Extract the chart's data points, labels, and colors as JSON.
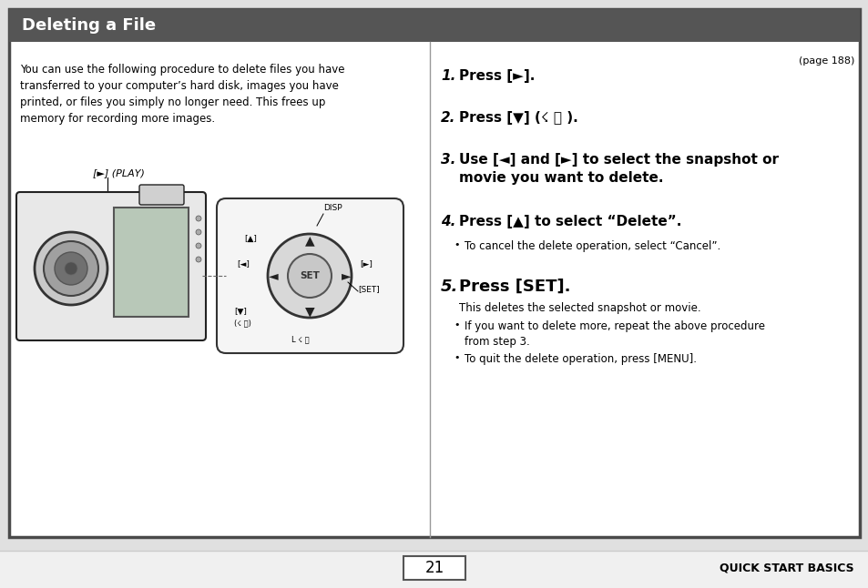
{
  "page_bg": "#ffffff",
  "border_color": "#4a4a4a",
  "header_bg": "#555555",
  "header_text": "Deleting a File",
  "header_text_color": "#ffffff",
  "page_ref": "(page 188)",
  "left_body_text": "You can use the following procedure to delete files you have\ntransferred to your computer’s hard disk, images you have\nprinted, or files you simply no longer need. This frees up\nmemory for recording more images.",
  "play_label": "[►] (PLAY)",
  "footer_page": "21",
  "footer_right": "QUICK START BASICS",
  "outer_border_color": "#4a4a4a"
}
